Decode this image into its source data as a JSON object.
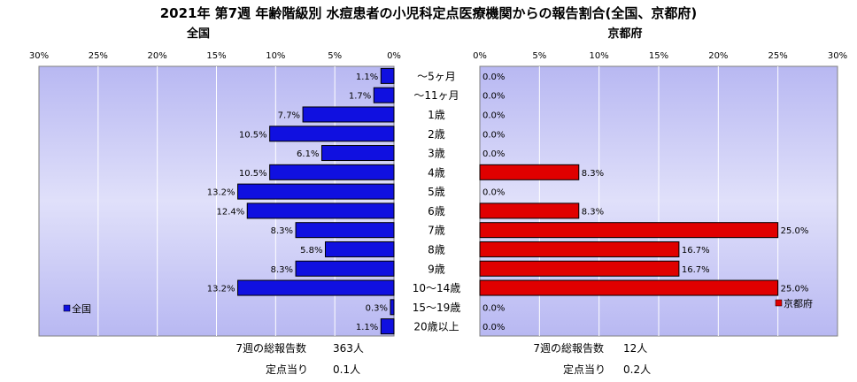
{
  "chart_data": {
    "type": "bar",
    "title": "2021年 第7週 年齢階級別 水痘患者の小児科定点医療機関からの報告割合(全国、京都府)",
    "categories": [
      "～5ヶ月",
      "～11ヶ月",
      "1歳",
      "2歳",
      "3歳",
      "4歳",
      "5歳",
      "6歳",
      "7歳",
      "8歳",
      "9歳",
      "10～14歳",
      "15～19歳",
      "20歳以上"
    ],
    "xlim": [
      0,
      30
    ],
    "ticks": [
      "0%",
      "5%",
      "10%",
      "15%",
      "20%",
      "25%",
      "30%"
    ],
    "grid": true,
    "series": [
      {
        "name": "全国",
        "panel_title": "全国",
        "color": "#1010e0",
        "direction": "left",
        "legend_position": "bottom-left",
        "values": [
          1.1,
          1.7,
          7.7,
          10.5,
          6.1,
          10.5,
          13.2,
          12.4,
          8.3,
          5.8,
          8.3,
          13.2,
          0.3,
          1.1
        ],
        "labels": [
          "1.1%",
          "1.7%",
          "7.7%",
          "10.5%",
          "6.1%",
          "10.5%",
          "13.2%",
          "12.4%",
          "8.3%",
          "5.8%",
          "8.3%",
          "13.2%",
          "0.3%",
          "1.1%"
        ]
      },
      {
        "name": "京都府",
        "panel_title": "京都府",
        "color": "#e00000",
        "direction": "right",
        "legend_position": "bottom-right",
        "values": [
          0,
          0,
          0,
          0,
          0,
          8.3,
          0,
          8.3,
          25.0,
          16.7,
          16.7,
          25.0,
          0,
          0
        ],
        "labels": [
          "0.0%",
          "0.0%",
          "0.0%",
          "0.0%",
          "0.0%",
          "8.3%",
          "0.0%",
          "8.3%",
          "25.0%",
          "16.7%",
          "16.7%",
          "25.0%",
          "0.0%",
          "0.0%"
        ]
      }
    ]
  },
  "footer": {
    "national": {
      "total_label": "7週の総報告数",
      "total_value": "363人",
      "per_label": "定点当り",
      "per_value": "0.1人"
    },
    "kyoto": {
      "total_label": "7週の総報告数",
      "total_value": "12人",
      "per_label": "定点当り",
      "per_value": "0.2人"
    }
  }
}
